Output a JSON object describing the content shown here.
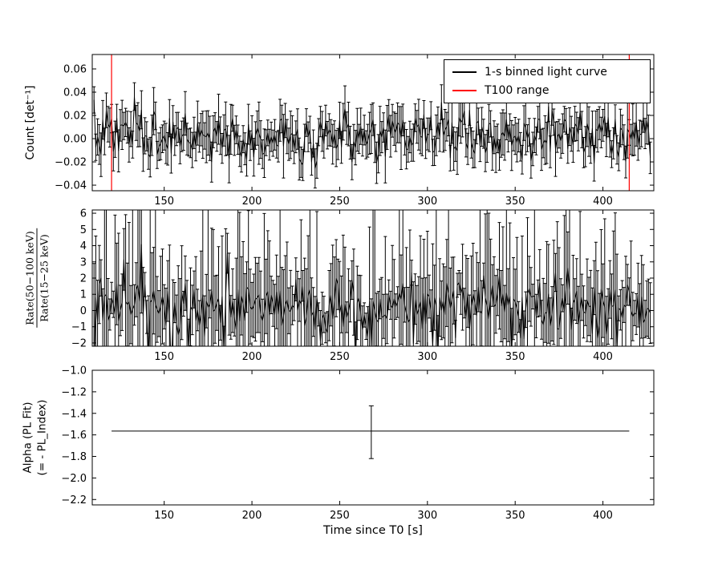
{
  "figure": {
    "background": "#ffffff",
    "axis_color": "#000000"
  },
  "legend": {
    "items": [
      {
        "label": "1-s binned light curve",
        "color": "#000000"
      },
      {
        "label": "T100 range",
        "color": "#ff0000"
      }
    ]
  },
  "chart_data": [
    {
      "id": "light-curve",
      "type": "errorbar-line",
      "ylabel": "Count [det⁻¹]",
      "xlim": [
        109,
        429
      ],
      "ylim": [
        -0.0448,
        0.0724
      ],
      "xticks": [
        {
          "v": 150,
          "label": "150"
        },
        {
          "v": 200,
          "label": "200"
        },
        {
          "v": 250,
          "label": "250"
        },
        {
          "v": 300,
          "label": "300"
        },
        {
          "v": 350,
          "label": "350"
        },
        {
          "v": 400,
          "label": "400"
        }
      ],
      "yticks": [
        {
          "v": 0.06,
          "label": "0.06"
        },
        {
          "v": 0.04,
          "label": "0.04"
        },
        {
          "v": 0.02,
          "label": "0.02"
        },
        {
          "v": 0,
          "label": "0.00"
        },
        {
          "v": -0.02,
          "label": "−0.02"
        },
        {
          "v": -0.04,
          "label": "−0.04"
        }
      ],
      "series_color": "#000000",
      "noise_model": {
        "x_start": 110,
        "x_end": 427,
        "x_step": 1,
        "seed": 7,
        "y_mean": 0.003,
        "y_std": 0.011,
        "yerr_base": 0.011,
        "yerr_spread": 0.005
      },
      "t100_range": {
        "x_start": 120,
        "x_end": 415,
        "color": "#ff0000"
      }
    },
    {
      "id": "hardness-ratio",
      "type": "errorbar-line",
      "ylabel_numerator": "Rate(50−100 keV)",
      "ylabel_denominator": "Rate(15−25 keV)",
      "xlim": [
        109,
        429
      ],
      "ylim": [
        -2.2,
        6.2
      ],
      "xticks": [
        {
          "v": 150,
          "label": "150"
        },
        {
          "v": 200,
          "label": "200"
        },
        {
          "v": 250,
          "label": "250"
        },
        {
          "v": 300,
          "label": "300"
        },
        {
          "v": 350,
          "label": "350"
        },
        {
          "v": 400,
          "label": "400"
        }
      ],
      "yticks": [
        {
          "v": 6,
          "label": "6"
        },
        {
          "v": 5,
          "label": "5"
        },
        {
          "v": 4,
          "label": "4"
        },
        {
          "v": 3,
          "label": "3"
        },
        {
          "v": 2,
          "label": "2"
        },
        {
          "v": 1,
          "label": "1"
        },
        {
          "v": 0,
          "label": "0"
        },
        {
          "v": -1,
          "label": "−1"
        },
        {
          "v": -2,
          "label": "−2"
        }
      ],
      "series_color": "#000000",
      "noise_model": {
        "x_start": 110,
        "x_end": 427,
        "x_step": 1,
        "seed": 13,
        "y_mean": 0.25,
        "y_std": 0.75,
        "outlier_prob": 0.15,
        "outlier_scale": 3.5,
        "yerr_base": 0.7,
        "yerr_spread": 1.5,
        "yerr_big_prob": 0.3,
        "yerr_big_scale": 5
      }
    },
    {
      "id": "alpha",
      "type": "errorbar-point",
      "ylabel_line1": "Alpha (PL Fit)",
      "ylabel_line2": "(= - PL_Index)",
      "xlabel": "Time since T0 [s]",
      "xlim": [
        109,
        429
      ],
      "ylim": [
        -2.25,
        -1.0
      ],
      "xticks": [
        {
          "v": 150,
          "label": "150"
        },
        {
          "v": 200,
          "label": "200"
        },
        {
          "v": 250,
          "label": "250"
        },
        {
          "v": 300,
          "label": "300"
        },
        {
          "v": 350,
          "label": "350"
        },
        {
          "v": 400,
          "label": "400"
        }
      ],
      "yticks": [
        {
          "v": -1.0,
          "label": "−1.0"
        },
        {
          "v": -1.2,
          "label": "−1.2"
        },
        {
          "v": -1.4,
          "label": "−1.4"
        },
        {
          "v": -1.6,
          "label": "−1.6"
        },
        {
          "v": -1.8,
          "label": "−1.8"
        },
        {
          "v": -2.0,
          "label": "−2.0"
        },
        {
          "v": -2.2,
          "label": "−2.2"
        }
      ],
      "series_color": "#000000",
      "point": {
        "x": 268,
        "y": -1.565,
        "err_up": 0.235,
        "err_down": 0.255
      },
      "hline": {
        "y": -1.565,
        "x_start": 120,
        "x_end": 415
      }
    }
  ]
}
